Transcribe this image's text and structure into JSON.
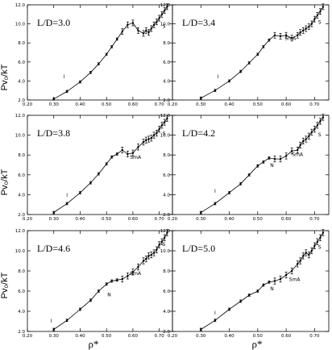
{
  "figure": {
    "y_axis_label": "Pv₀/kT",
    "x_axis_label": "ρ*"
  },
  "chart_data": [
    {
      "type": "scatter",
      "title": "L/D=3.0",
      "xlim": [
        0.2,
        0.75
      ],
      "ylim": [
        2.0,
        12.0
      ],
      "xticks": [
        "0.20",
        "0.30",
        "0.40",
        "0.50",
        "0.60",
        "0.70"
      ],
      "yticks": [
        "2.0",
        "4.0",
        "6.0",
        "8.0",
        "10.0",
        "12.0"
      ],
      "annotations": [
        {
          "text": "I",
          "x": 0.34,
          "y": 4.3
        },
        {
          "text": "S",
          "x": 0.718,
          "y": 9.6
        }
      ],
      "series": [
        {
          "x": [
            0.3,
            0.35,
            0.4,
            0.44,
            0.47,
            0.5,
            0.52,
            0.54,
            0.56,
            0.58,
            0.6,
            0.62,
            0.64,
            0.65,
            0.66,
            0.67,
            0.68,
            0.69,
            0.7,
            0.71,
            0.72,
            0.73
          ],
          "y": [
            2.1,
            2.9,
            3.9,
            4.9,
            5.8,
            6.8,
            7.6,
            8.4,
            9.2,
            9.9,
            10.1,
            9.3,
            9.0,
            9.3,
            9.1,
            9.5,
            9.9,
            10.2,
            10.6,
            11.0,
            11.4,
            11.8
          ]
        }
      ]
    },
    {
      "type": "scatter",
      "title": "L/D=3.4",
      "xlim": [
        0.2,
        0.75
      ],
      "ylim": [
        2.0,
        12.0
      ],
      "xticks": [
        "0.20",
        "0.30",
        "0.40",
        "0.50",
        "0.60",
        "0.70"
      ],
      "yticks": [
        "2.0",
        "4.0",
        "6.0",
        "8.0",
        "10.0",
        "12.0"
      ],
      "annotations": [
        {
          "text": "I",
          "x": 0.36,
          "y": 4.3
        },
        {
          "text": "SmA",
          "x": 0.615,
          "y": 8.3
        },
        {
          "text": "S",
          "x": 0.718,
          "y": 10.0
        }
      ],
      "series": [
        {
          "x": [
            0.3,
            0.35,
            0.4,
            0.44,
            0.47,
            0.5,
            0.52,
            0.54,
            0.56,
            0.58,
            0.6,
            0.62,
            0.64,
            0.65,
            0.66,
            0.67,
            0.68,
            0.69,
            0.7,
            0.71,
            0.72,
            0.73
          ],
          "y": [
            2.2,
            3.0,
            4.0,
            5.0,
            5.9,
            6.8,
            7.6,
            8.3,
            8.8,
            8.7,
            8.8,
            8.5,
            8.8,
            9.1,
            9.3,
            9.5,
            9.7,
            10.0,
            10.5,
            10.9,
            11.3,
            11.8
          ]
        }
      ]
    },
    {
      "type": "scatter",
      "title": "L/D=3.8",
      "xlim": [
        0.2,
        0.75
      ],
      "ylim": [
        2.0,
        12.0
      ],
      "xticks": [
        "0.20",
        "0.30",
        "0.40",
        "0.50",
        "0.60",
        "0.70"
      ],
      "yticks": [
        "2.0",
        "4.0",
        "6.0",
        "8.0",
        "10.0",
        "12.0"
      ],
      "annotations": [
        {
          "text": "I",
          "x": 0.35,
          "y": 3.8
        },
        {
          "text": "SmA",
          "x": 0.61,
          "y": 7.6
        },
        {
          "text": "S",
          "x": 0.718,
          "y": 10.0
        }
      ],
      "series": [
        {
          "x": [
            0.3,
            0.35,
            0.4,
            0.44,
            0.47,
            0.5,
            0.52,
            0.54,
            0.56,
            0.58,
            0.6,
            0.62,
            0.64,
            0.65,
            0.66,
            0.67,
            0.68,
            0.69,
            0.7,
            0.71,
            0.72,
            0.73
          ],
          "y": [
            2.2,
            3.1,
            4.2,
            5.2,
            6.1,
            7.1,
            7.8,
            8.1,
            8.5,
            8.1,
            8.2,
            8.8,
            9.3,
            9.5,
            9.6,
            9.7,
            10.0,
            10.2,
            10.6,
            11.0,
            11.3,
            11.7
          ]
        }
      ]
    },
    {
      "type": "scatter",
      "title": "L/D=4.2",
      "xlim": [
        0.2,
        0.75
      ],
      "ylim": [
        2.0,
        12.0
      ],
      "xticks": [
        "0.20",
        "0.30",
        "0.40",
        "0.50",
        "0.60",
        "0.70"
      ],
      "yticks": [
        "2.0",
        "4.0",
        "6.0",
        "8.0",
        "10.0",
        "12.0"
      ],
      "annotations": [
        {
          "text": "I",
          "x": 0.35,
          "y": 4.2
        },
        {
          "text": "N",
          "x": 0.55,
          "y": 6.8
        },
        {
          "text": "SmA",
          "x": 0.64,
          "y": 7.9
        },
        {
          "text": "S",
          "x": 0.718,
          "y": 9.9
        }
      ],
      "series": [
        {
          "x": [
            0.3,
            0.35,
            0.4,
            0.44,
            0.47,
            0.5,
            0.52,
            0.54,
            0.56,
            0.58,
            0.6,
            0.62,
            0.64,
            0.65,
            0.66,
            0.67,
            0.68,
            0.69,
            0.7,
            0.71,
            0.72,
            0.73
          ],
          "y": [
            2.2,
            3.1,
            4.2,
            5.1,
            6.0,
            6.9,
            7.3,
            7.7,
            7.6,
            7.6,
            7.9,
            8.4,
            8.5,
            9.0,
            9.4,
            9.6,
            9.9,
            10.3,
            10.6,
            11.0,
            11.4,
            11.8
          ]
        }
      ]
    },
    {
      "type": "scatter",
      "title": "L/D=4.6",
      "xlim": [
        0.2,
        0.75
      ],
      "ylim": [
        2.0,
        12.0
      ],
      "xticks": [
        "0.20",
        "0.30",
        "0.40",
        "0.50",
        "0.60",
        "0.70"
      ],
      "yticks": [
        "2.0",
        "4.0",
        "6.0",
        "8.0",
        "10.0",
        "12.0"
      ],
      "annotations": [
        {
          "text": "I",
          "x": 0.29,
          "y": 2.9
        },
        {
          "text": "N",
          "x": 0.51,
          "y": 5.5
        },
        {
          "text": "SmA",
          "x": 0.61,
          "y": 7.6
        },
        {
          "text": "S",
          "x": 0.718,
          "y": 10.5
        }
      ],
      "series": [
        {
          "x": [
            0.3,
            0.35,
            0.4,
            0.44,
            0.47,
            0.5,
            0.52,
            0.54,
            0.56,
            0.58,
            0.6,
            0.62,
            0.64,
            0.65,
            0.66,
            0.67,
            0.68,
            0.69,
            0.7,
            0.71,
            0.72,
            0.73
          ],
          "y": [
            2.2,
            3.1,
            4.2,
            5.1,
            6.0,
            6.7,
            7.0,
            7.1,
            7.2,
            7.5,
            7.9,
            8.4,
            9.0,
            9.2,
            9.5,
            9.6,
            9.8,
            10.1,
            10.6,
            10.9,
            11.3,
            11.8
          ]
        }
      ]
    },
    {
      "type": "scatter",
      "title": "L/D=5.0",
      "xlim": [
        0.2,
        0.75
      ],
      "ylim": [
        2.0,
        12.0
      ],
      "xticks": [
        "0.20",
        "0.30",
        "0.40",
        "0.50",
        "0.60",
        "0.70"
      ],
      "yticks": [
        "2.0",
        "4.0",
        "6.0",
        "8.0",
        "10.0",
        "12.0"
      ],
      "annotations": [
        {
          "text": "I",
          "x": 0.35,
          "y": 3.7
        },
        {
          "text": "N",
          "x": 0.55,
          "y": 6.1
        },
        {
          "text": "SmA",
          "x": 0.63,
          "y": 7.0
        },
        {
          "text": "S",
          "x": 0.718,
          "y": 10.2
        }
      ],
      "series": [
        {
          "x": [
            0.3,
            0.35,
            0.4,
            0.44,
            0.47,
            0.5,
            0.52,
            0.54,
            0.56,
            0.58,
            0.6,
            0.62,
            0.64,
            0.65,
            0.66,
            0.67,
            0.68,
            0.69,
            0.7,
            0.71,
            0.72,
            0.73
          ],
          "y": [
            2.2,
            3.1,
            4.2,
            5.0,
            5.6,
            6.0,
            6.6,
            6.9,
            7.0,
            7.2,
            7.6,
            8.0,
            8.7,
            9.0,
            9.5,
            9.8,
            9.6,
            10.0,
            10.5,
            10.9,
            11.3,
            11.8
          ]
        }
      ]
    }
  ]
}
